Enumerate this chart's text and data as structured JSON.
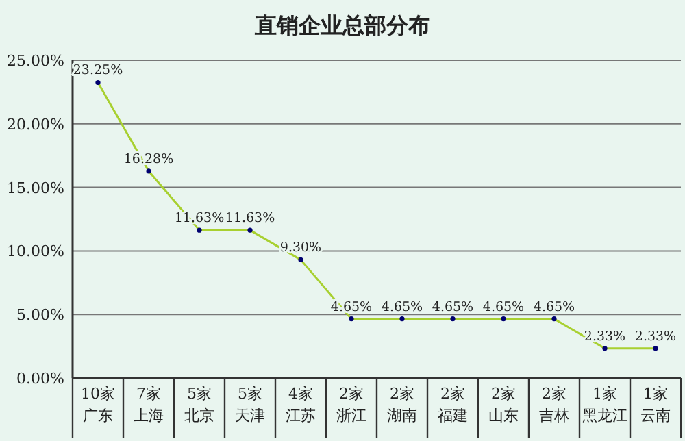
{
  "chart_data": {
    "type": "line",
    "title": "直销企业总部分布",
    "categories": [
      "10家广东",
      "7家上海",
      "5家北京",
      "5家天津",
      "4家江苏",
      "2家浙江",
      "2家湖南",
      "2家福建",
      "2家山东",
      "2家吉林",
      "1家黑龙江",
      "1家云南"
    ],
    "series": [
      {
        "color": "#a8d030",
        "values": [
          23.25,
          16.28,
          11.63,
          11.63,
          9.3,
          4.65,
          4.65,
          4.65,
          4.65,
          4.65,
          2.33,
          2.33
        ],
        "value_labels": [
          "23.25%",
          "16.28%",
          "11.63%",
          "11.63%",
          "9.30%",
          "4.65%",
          "4.65%",
          "4.65%",
          "4.65%",
          "4.65%",
          "2.33%",
          "2.33%"
        ]
      }
    ],
    "ylim": [
      0,
      25
    ],
    "yticks": [
      {
        "value": 0,
        "label": "0.00%"
      },
      {
        "value": 5,
        "label": "5.00%"
      },
      {
        "value": 10,
        "label": "10.00%"
      },
      {
        "value": 15,
        "label": "15.00%"
      },
      {
        "value": 20,
        "label": "20.00%"
      },
      {
        "value": 25,
        "label": "25.00%"
      }
    ],
    "grid": "y",
    "marker": "circle",
    "line_style": "solid"
  }
}
